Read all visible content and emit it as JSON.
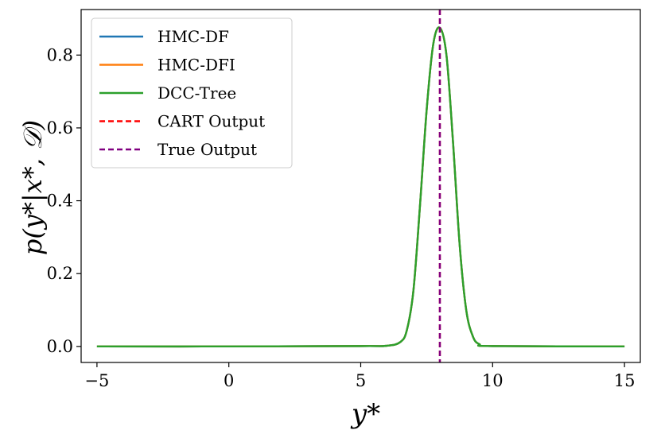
{
  "chart_data": {
    "type": "line",
    "title": "",
    "xlabel": "y*",
    "ylabel": "p(y*|x*, 𝒟)",
    "xlim": [
      -5.6,
      15.6
    ],
    "ylim": [
      -0.044,
      0.925
    ],
    "xticks": [
      -5,
      0,
      5,
      10,
      15
    ],
    "xtick_labels": [
      "−5",
      "0",
      "5",
      "10",
      "15"
    ],
    "yticks": [
      0.0,
      0.2,
      0.4,
      0.6,
      0.8
    ],
    "ytick_labels": [
      "0.0",
      "0.2",
      "0.4",
      "0.6",
      "0.8"
    ],
    "grid": false,
    "legend_position": "top-left",
    "series": [
      {
        "name": "HMC-DF",
        "color": "#1f77b4",
        "style": "solid",
        "x": [
          -5,
          0,
          5,
          6,
          6.5,
          6.75,
          7,
          7.25,
          7.5,
          7.75,
          8,
          8.25,
          8.5,
          8.75,
          9,
          9.25,
          9.5,
          10,
          15
        ],
        "y": [
          0,
          0,
          0.001,
          0.002,
          0.012,
          0.045,
          0.155,
          0.39,
          0.65,
          0.83,
          0.875,
          0.8,
          0.56,
          0.28,
          0.1,
          0.028,
          0.006,
          0.001,
          0
        ]
      },
      {
        "name": "HMC-DFI",
        "color": "#ff7f0e",
        "style": "solid",
        "x": [
          -5,
          0,
          5,
          6,
          6.5,
          6.75,
          7,
          7.25,
          7.5,
          7.75,
          8,
          8.25,
          8.5,
          8.75,
          9,
          9.25,
          9.5,
          10,
          15
        ],
        "y": [
          0,
          0,
          0.001,
          0.002,
          0.012,
          0.045,
          0.155,
          0.39,
          0.65,
          0.83,
          0.875,
          0.8,
          0.56,
          0.28,
          0.1,
          0.028,
          0.006,
          0.001,
          0
        ]
      },
      {
        "name": "DCC-Tree",
        "color": "#2ca02c",
        "style": "solid",
        "x": [
          -5,
          0,
          5,
          6,
          6.5,
          6.75,
          7,
          7.25,
          7.5,
          7.75,
          8,
          8.25,
          8.5,
          8.75,
          9,
          9.25,
          9.5,
          10,
          15
        ],
        "y": [
          0,
          0,
          0.001,
          0.002,
          0.012,
          0.045,
          0.155,
          0.39,
          0.65,
          0.83,
          0.875,
          0.8,
          0.56,
          0.28,
          0.1,
          0.028,
          0.006,
          0.001,
          0
        ]
      }
    ],
    "vlines": [
      {
        "name": "CART Output",
        "x": 8.0,
        "color": "#ff0000",
        "style": "dashed"
      },
      {
        "name": "True Output",
        "x": 8.0,
        "color": "#800080",
        "style": "dashed"
      }
    ],
    "legend": [
      "HMC-DF",
      "HMC-DFI",
      "DCC-Tree",
      "CART Output",
      "True Output"
    ]
  }
}
